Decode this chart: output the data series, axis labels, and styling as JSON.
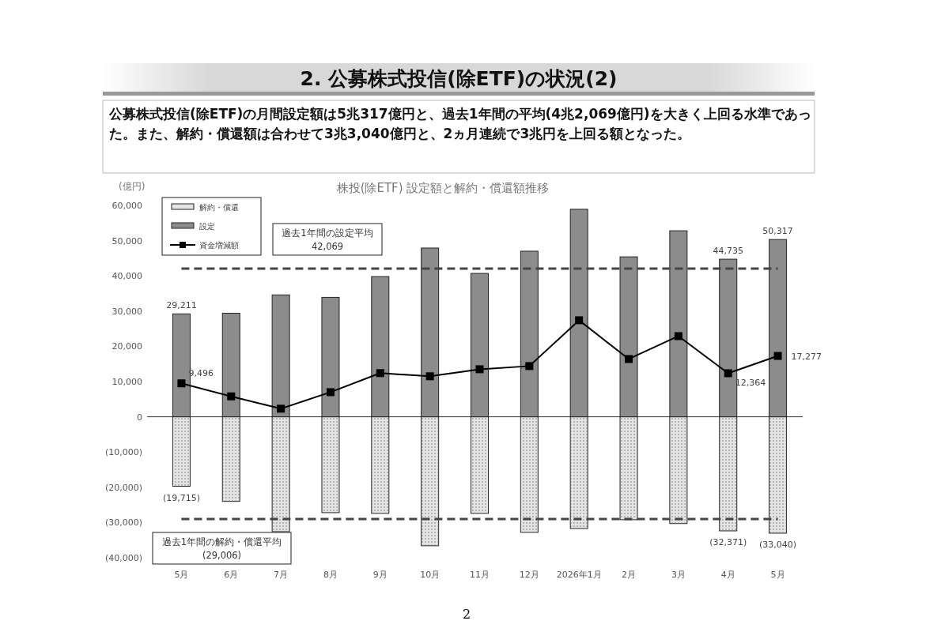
{
  "chart_data": {
    "type": "bar",
    "title": "2. 公募株式投信(除ETF)の状況(2)",
    "subtitle": "株投(除ETF) 設定額と解約・償還額推移",
    "ylabel": "(億円)",
    "annotations": [
      "公募株式投信(除ETF)の月間設定額は5兆317億円と、過去1年間の平均(4兆2,069億円)を大きく上回る水準であった。また、解約・償還額は合わせて3兆3,040億円と、2ヵ月連続で3兆円を上回る額となった。",
      "2"
    ],
    "stacked": true,
    "categories": [
      "5月",
      "6月",
      "7月",
      "8月",
      "9月",
      "10月",
      "11月",
      "12月",
      "2026年1月",
      "2月",
      "3月",
      "4月",
      "5月"
    ],
    "series": [
      {
        "name": "解約・償還",
        "color": "#e4e4e4",
        "values": [
          -19715,
          -24000,
          -32600,
          -27200,
          -27400,
          -36600,
          -27400,
          -32800,
          -31700,
          -29200,
          -30300,
          -32371,
          -33040
        ],
        "value_labels": [
          "(19,715)",
          null,
          null,
          null,
          null,
          null,
          null,
          null,
          null,
          null,
          null,
          "(32,371)",
          "(33,040)"
        ]
      },
      {
        "name": "設定",
        "color": "#8c8c8c",
        "values": [
          29211,
          29400,
          34600,
          33900,
          39800,
          47900,
          40700,
          47000,
          58900,
          45400,
          52800,
          44735,
          50317
        ],
        "value_labels": [
          "29,211",
          null,
          null,
          null,
          null,
          null,
          null,
          null,
          null,
          null,
          null,
          "44,735",
          "50,317"
        ]
      },
      {
        "name": "資金増減額",
        "type": "line",
        "color": "#000000",
        "marker": "square",
        "values": [
          9496,
          5800,
          2300,
          7000,
          12400,
          11500,
          13500,
          14400,
          27400,
          16400,
          22900,
          12364,
          17277
        ],
        "value_labels": [
          "9,496",
          null,
          null,
          null,
          null,
          null,
          null,
          null,
          null,
          null,
          null,
          "12,364",
          "17,277"
        ]
      }
    ],
    "ylim": [
      -40000,
      60000
    ],
    "yticks": [
      {
        "value": -40000,
        "label": "(40,000)"
      },
      {
        "value": -30000,
        "label": "(30,000)"
      },
      {
        "value": -20000,
        "label": "(20,000)"
      },
      {
        "value": -10000,
        "label": "(10,000)"
      },
      0,
      {
        "value": 10000,
        "label": "10,000"
      },
      {
        "value": 20000,
        "label": "20,000"
      },
      {
        "value": 30000,
        "label": "30,000"
      },
      {
        "value": 40000,
        "label": "40,000"
      },
      {
        "value": 50000,
        "label": "50,000"
      },
      {
        "value": 60000,
        "label": "60,000"
      }
    ],
    "ref_lines": [
      {
        "axis": "y",
        "value": 42069,
        "label": "過去1年間の設定平均\n42,069",
        "line_style": "dashed",
        "color": "#444444"
      },
      {
        "axis": "y",
        "value": -29006,
        "label": "過去1年間の解約・償還平均\n(29,006)",
        "line_style": "dashed",
        "color": "#444444"
      }
    ],
    "legend": "top left"
  }
}
